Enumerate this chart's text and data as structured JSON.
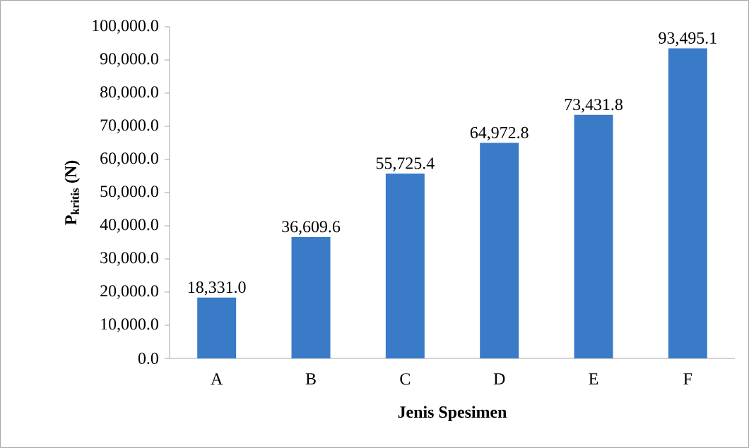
{
  "chart_data": {
    "type": "bar",
    "xlabel": "Jenis Spesimen",
    "ylabel": "P$_{kritis}$ (N)",
    "categories": [
      "A",
      "B",
      "C",
      "D",
      "E",
      "F"
    ],
    "values": [
      18331.0,
      36609.6,
      55725.4,
      64972.8,
      73431.8,
      93495.1
    ],
    "value_labels": [
      "18,331.0",
      "36,609.6",
      "55,725.4",
      "64,972.8",
      "73,431.8",
      "93,495.1"
    ],
    "color": "#3a7bc8",
    "ylim": [
      0,
      100000
    ],
    "yticks": [
      {
        "value": 0,
        "label": "0.0"
      },
      {
        "value": 10000,
        "label": "10,000.0"
      },
      {
        "value": 20000,
        "label": "20,000.0"
      },
      {
        "value": 30000,
        "label": "30,000.0"
      },
      {
        "value": 40000,
        "label": "40,000.0"
      },
      {
        "value": 50000,
        "label": "50,000.0"
      },
      {
        "value": 60000,
        "label": "60,000.0"
      },
      {
        "value": 70000,
        "label": "70,000.0"
      },
      {
        "value": 80000,
        "label": "80,000.0"
      },
      {
        "value": 90000,
        "label": "90,000.0"
      },
      {
        "value": 100000,
        "label": "100,000.0"
      }
    ],
    "grid": false
  }
}
